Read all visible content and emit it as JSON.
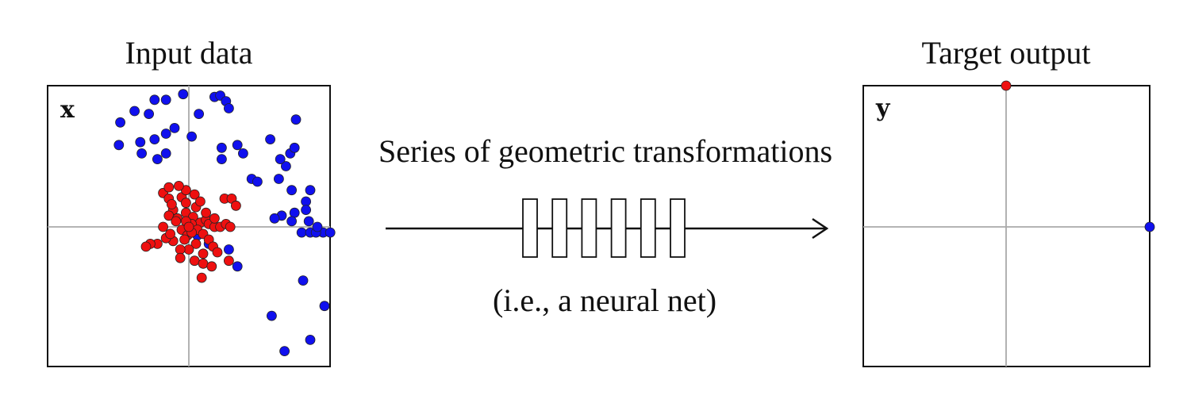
{
  "input_panel": {
    "title": "Input data",
    "var_label": "x",
    "points": {
      "blue": [
        [
          -0.48,
          0.74
        ],
        [
          -0.24,
          0.9
        ],
        [
          -0.16,
          0.9
        ],
        [
          -0.28,
          0.8
        ],
        [
          -0.38,
          0.82
        ],
        [
          0.07,
          0.8
        ],
        [
          0.18,
          0.92
        ],
        [
          0.22,
          0.93
        ],
        [
          0.26,
          0.89
        ],
        [
          0.28,
          0.84
        ],
        [
          -0.04,
          0.94
        ],
        [
          -0.16,
          0.66
        ],
        [
          -0.24,
          0.62
        ],
        [
          -0.34,
          0.6
        ],
        [
          -0.49,
          0.58
        ],
        [
          -0.1,
          0.7
        ],
        [
          0.02,
          0.64
        ],
        [
          -0.16,
          0.52
        ],
        [
          -0.22,
          0.48
        ],
        [
          -0.33,
          0.52
        ],
        [
          0.23,
          0.56
        ],
        [
          0.23,
          0.48
        ],
        [
          0.34,
          0.58
        ],
        [
          0.38,
          0.52
        ],
        [
          0.44,
          0.34
        ],
        [
          0.48,
          0.32
        ],
        [
          0.57,
          0.62
        ],
        [
          0.63,
          0.34
        ],
        [
          0.68,
          0.43
        ],
        [
          0.71,
          0.52
        ],
        [
          0.72,
          0.26
        ],
        [
          0.75,
          0.76
        ],
        [
          0.82,
          0.18
        ],
        [
          0.82,
          0.12
        ],
        [
          0.74,
          0.1
        ],
        [
          0.72,
          0.04
        ],
        [
          0.65,
          0.08
        ],
        [
          0.6,
          0.06
        ],
        [
          0.94,
          -0.04
        ],
        [
          0.79,
          -0.04
        ],
        [
          0.85,
          -0.04
        ],
        [
          0.89,
          -0.04
        ],
        [
          0.9,
          0.0
        ],
        [
          0.99,
          -0.04
        ],
        [
          0.06,
          -0.06
        ],
        [
          0.14,
          -0.12
        ],
        [
          0.28,
          -0.16
        ],
        [
          0.34,
          -0.28
        ],
        [
          0.8,
          -0.38
        ],
        [
          0.95,
          -0.56
        ],
        [
          0.58,
          -0.63
        ],
        [
          0.67,
          -0.88
        ],
        [
          0.85,
          -0.8
        ],
        [
          0.74,
          0.56
        ],
        [
          0.85,
          0.26
        ],
        [
          0.84,
          0.04
        ],
        [
          0.64,
          0.48
        ]
      ],
      "red": [
        [
          -0.18,
          0.24
        ],
        [
          -0.14,
          0.2
        ],
        [
          -0.11,
          0.12
        ],
        [
          -0.14,
          0.08
        ],
        [
          -0.05,
          0.21
        ],
        [
          -0.02,
          0.1
        ],
        [
          0.03,
          0.07
        ],
        [
          0.05,
          0.14
        ],
        [
          0.08,
          0.03
        ],
        [
          0.12,
          0.05
        ],
        [
          0.14,
          0.02
        ],
        [
          0.18,
          0.0
        ],
        [
          0.22,
          0.0
        ],
        [
          0.26,
          0.02
        ],
        [
          0.29,
          0.0
        ],
        [
          0.18,
          0.06
        ],
        [
          0.25,
          0.2
        ],
        [
          0.3,
          0.2
        ],
        [
          0.33,
          0.15
        ],
        [
          0.04,
          0.23
        ],
        [
          -0.02,
          0.26
        ],
        [
          -0.07,
          0.29
        ],
        [
          -0.14,
          0.28
        ],
        [
          -0.12,
          0.16
        ],
        [
          -0.08,
          0.06
        ],
        [
          -0.05,
          -0.02
        ],
        [
          -0.01,
          -0.06
        ],
        [
          0.02,
          0.02
        ],
        [
          0.06,
          -0.02
        ],
        [
          0.1,
          -0.05
        ],
        [
          0.14,
          -0.09
        ],
        [
          0.17,
          -0.14
        ],
        [
          0.2,
          -0.18
        ],
        [
          0.05,
          -0.12
        ],
        [
          0.0,
          -0.16
        ],
        [
          -0.06,
          -0.16
        ],
        [
          -0.11,
          -0.1
        ],
        [
          -0.16,
          -0.08
        ],
        [
          -0.22,
          -0.12
        ],
        [
          -0.27,
          -0.12
        ],
        [
          -0.3,
          -0.14
        ],
        [
          -0.06,
          -0.22
        ],
        [
          0.04,
          -0.24
        ],
        [
          0.1,
          -0.26
        ],
        [
          0.16,
          -0.28
        ],
        [
          0.28,
          -0.24
        ],
        [
          0.09,
          -0.36
        ],
        [
          -0.02,
          0.04
        ],
        [
          0.02,
          -0.04
        ],
        [
          -0.09,
          0.04
        ],
        [
          0.0,
          0.0
        ],
        [
          -0.18,
          0.0
        ],
        [
          0.08,
          0.18
        ],
        [
          -0.02,
          0.17
        ],
        [
          0.12,
          0.1
        ],
        [
          -0.03,
          -0.09
        ],
        [
          0.1,
          -0.19
        ],
        [
          -0.13,
          -0.05
        ]
      ]
    }
  },
  "output_panel": {
    "title": "Target output",
    "var_label": "y",
    "points": {
      "red": [
        [
          0.0,
          1.0
        ]
      ],
      "blue": [
        [
          1.0,
          0.0
        ]
      ]
    }
  },
  "middle": {
    "caption_top": "Series of geometric transformations",
    "caption_bottom": "(i.e., a neural net)",
    "layer_count": 6
  },
  "colors": {
    "blue": "#1010ee",
    "red": "#ee1010",
    "axis": "#aaaaaa",
    "frame": "#111111"
  }
}
